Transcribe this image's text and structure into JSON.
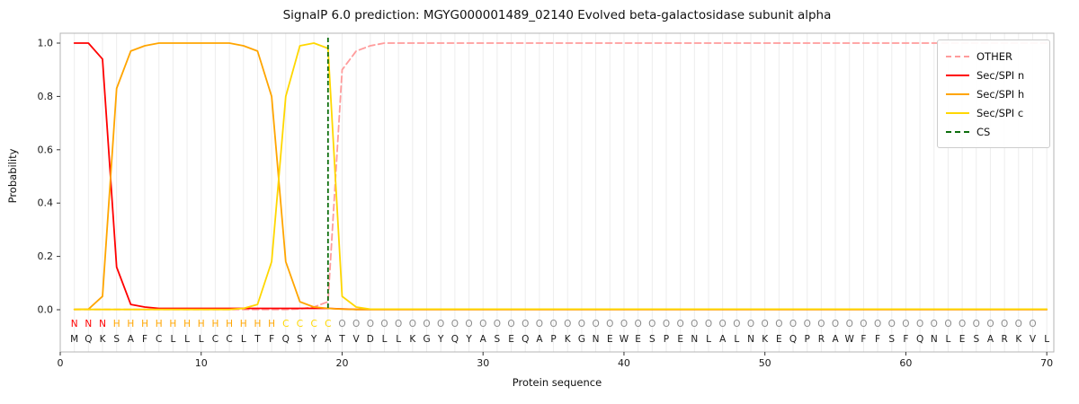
{
  "chart_data": {
    "type": "line",
    "title": "SignalP 6.0 prediction: MGYG000001489_02140 Evolved beta-galactosidase subunit alpha",
    "xlabel": "Protein sequence",
    "ylabel": "Probability",
    "xlim": [
      0,
      70.5
    ],
    "ylim": [
      -0.16,
      1.04
    ],
    "xticks": [
      0,
      10,
      20,
      30,
      40,
      50,
      60,
      70
    ],
    "yticks": [
      0.0,
      0.2,
      0.4,
      0.6,
      0.8,
      1.0
    ],
    "grid": "vertical-per-residue",
    "legend_position": "upper-right",
    "colors": {
      "grid": "#ededed",
      "frame": "#b5b5b5",
      "tick": "#333333",
      "text": "#1a1a1a"
    },
    "series": [
      {
        "name": "OTHER",
        "color": "#ff9c9c",
        "dashed": true,
        "values": [
          0.001,
          0.001,
          0.001,
          0.001,
          0.001,
          0.001,
          0.001,
          0.001,
          0.001,
          0.001,
          0.001,
          0.001,
          0.001,
          0.001,
          0.001,
          0.001,
          0.003,
          0.01,
          0.03,
          0.9,
          0.97,
          0.99,
          1.0,
          1.0,
          1.0,
          1.0,
          1.0,
          1.0,
          1.0,
          1.0,
          1.0,
          1.0,
          1.0,
          1.0,
          1.0,
          1.0,
          1.0,
          1.0,
          1.0,
          1.0,
          1.0,
          1.0,
          1.0,
          1.0,
          1.0,
          1.0,
          1.0,
          1.0,
          1.0,
          1.0,
          1.0,
          1.0,
          1.0,
          1.0,
          1.0,
          1.0,
          1.0,
          1.0,
          1.0,
          1.0,
          1.0,
          1.0,
          1.0,
          1.0,
          1.0,
          1.0,
          1.0,
          1.0,
          1.0,
          1.0
        ]
      },
      {
        "name": "Sec/SPI n",
        "color": "#ff0000",
        "dashed": false,
        "values": [
          1.0,
          1.0,
          0.94,
          0.16,
          0.02,
          0.01,
          0.005,
          0.005,
          0.005,
          0.005,
          0.005,
          0.005,
          0.005,
          0.005,
          0.005,
          0.005,
          0.005,
          0.005,
          0.005,
          0.003,
          0.001,
          0.001,
          0.001,
          0.001,
          0.001,
          0.001,
          0.001,
          0.001,
          0.001,
          0.001,
          0.001,
          0.001,
          0.001,
          0.001,
          0.001,
          0.001,
          0.001,
          0.001,
          0.001,
          0.001,
          0.001,
          0.001,
          0.001,
          0.001,
          0.001,
          0.001,
          0.001,
          0.001,
          0.001,
          0.001,
          0.001,
          0.001,
          0.001,
          0.001,
          0.001,
          0.001,
          0.001,
          0.001,
          0.001,
          0.001,
          0.001,
          0.001,
          0.001,
          0.001,
          0.001,
          0.001,
          0.001,
          0.001,
          0.001,
          0.001
        ]
      },
      {
        "name": "Sec/SPI h",
        "color": "#ffa500",
        "dashed": false,
        "values": [
          0.001,
          0.002,
          0.05,
          0.83,
          0.97,
          0.99,
          1.0,
          1.0,
          1.0,
          1.0,
          1.0,
          1.0,
          0.99,
          0.97,
          0.8,
          0.18,
          0.03,
          0.01,
          0.005,
          0.002,
          0.001,
          0.001,
          0.001,
          0.001,
          0.001,
          0.001,
          0.001,
          0.001,
          0.001,
          0.001,
          0.001,
          0.001,
          0.001,
          0.001,
          0.001,
          0.001,
          0.001,
          0.001,
          0.001,
          0.001,
          0.001,
          0.001,
          0.001,
          0.001,
          0.001,
          0.001,
          0.001,
          0.001,
          0.001,
          0.001,
          0.001,
          0.001,
          0.001,
          0.001,
          0.001,
          0.001,
          0.001,
          0.001,
          0.001,
          0.001,
          0.001,
          0.001,
          0.001,
          0.001,
          0.001,
          0.001,
          0.001,
          0.001,
          0.001,
          0.001
        ]
      },
      {
        "name": "Sec/SPI c",
        "color": "#ffd700",
        "dashed": false,
        "values": [
          0.001,
          0.001,
          0.001,
          0.001,
          0.001,
          0.001,
          0.001,
          0.001,
          0.001,
          0.001,
          0.001,
          0.001,
          0.005,
          0.02,
          0.18,
          0.8,
          0.99,
          1.0,
          0.98,
          0.05,
          0.01,
          0.002,
          0.002,
          0.002,
          0.002,
          0.002,
          0.002,
          0.002,
          0.002,
          0.002,
          0.002,
          0.002,
          0.002,
          0.002,
          0.002,
          0.002,
          0.002,
          0.002,
          0.002,
          0.002,
          0.002,
          0.002,
          0.002,
          0.002,
          0.002,
          0.002,
          0.002,
          0.002,
          0.002,
          0.002,
          0.002,
          0.002,
          0.002,
          0.002,
          0.002,
          0.002,
          0.002,
          0.002,
          0.002,
          0.002,
          0.002,
          0.002,
          0.002,
          0.002,
          0.002,
          0.002,
          0.002,
          0.002,
          0.002,
          0.002
        ]
      }
    ],
    "cs_line": {
      "name": "CS",
      "x": 19,
      "color": "#0d6e0d",
      "dashed": true
    },
    "legend": {
      "entries": [
        {
          "label": "OTHER",
          "color": "#ff9c9c",
          "dashed": true
        },
        {
          "label": "Sec/SPI n",
          "color": "#ff0000",
          "dashed": false
        },
        {
          "label": "Sec/SPI h",
          "color": "#ffa500",
          "dashed": false
        },
        {
          "label": "Sec/SPI c",
          "color": "#ffd700",
          "dashed": false
        },
        {
          "label": "CS",
          "color": "#0d6e0d",
          "dashed": true
        }
      ]
    },
    "sequence": "MQKSAFCLLLCCLTFQSYATVDLLKGYQYASEQAPKGNEWESPENLALNKEQPRAWFFSFQNLESARKVL",
    "regions": "NNNHHHHHHHHHHHHCCCCOOOOOOOOOOOOOOOOOOOOOOOOOOOOOOOOOOOOOOOOOOOOOOOOOO",
    "region_colors": {
      "N": "#ff0000",
      "H": "#ffa500",
      "C": "#ffd700",
      "O": "#8c8c8c"
    }
  }
}
